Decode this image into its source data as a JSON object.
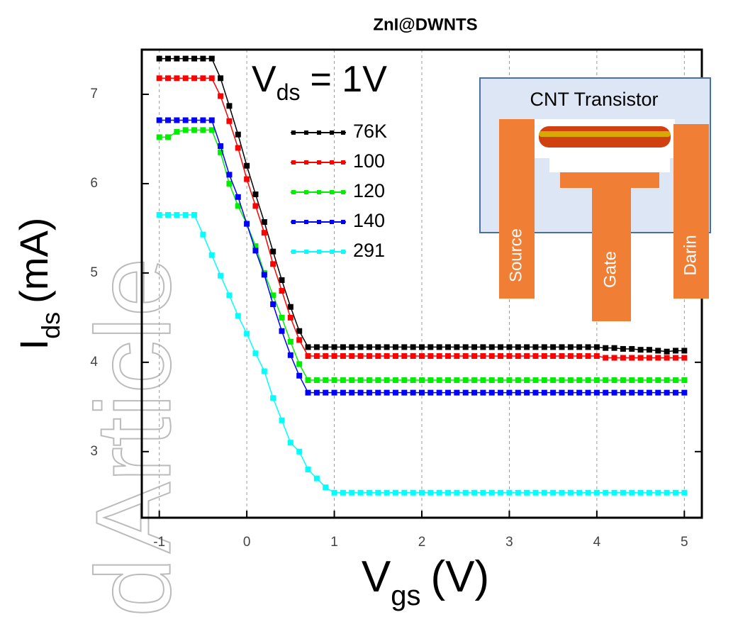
{
  "watermark": [
    "Article",
    "d"
  ],
  "chart_data": {
    "type": "line",
    "title": "ZnI@DWNTS",
    "x_label": {
      "symbol": "V",
      "subscript": "gs",
      "unit": "(V)"
    },
    "y_label": {
      "symbol": "I",
      "subscript": "ds",
      "unit": "(mA)"
    },
    "annotation": {
      "symbol": "V",
      "subscript": "ds",
      "text": "= 1V"
    },
    "inset": {
      "title": "CNT Transistor",
      "labels": [
        "Source",
        "Gate",
        "Darin"
      ]
    },
    "xlim": [
      -1.2,
      5.2
    ],
    "ylim": [
      2.26,
      7.5
    ],
    "xticks": [
      -1,
      0,
      1,
      2,
      3,
      4,
      5
    ],
    "yticks": [
      3,
      4,
      5,
      6,
      7
    ],
    "grid": true,
    "x": [
      -1,
      -0.9,
      -0.8,
      -0.7,
      -0.6,
      -0.5,
      -0.4,
      -0.3,
      -0.2,
      -0.1,
      0,
      0.1,
      0.2,
      0.3,
      0.4,
      0.5,
      0.6,
      0.7,
      0.8,
      0.9,
      1,
      1.1,
      1.2,
      1.3,
      1.4,
      1.5,
      1.6,
      1.7,
      1.8,
      1.9,
      2,
      2.1,
      2.2,
      2.3,
      2.4,
      2.5,
      2.6,
      2.7,
      2.8,
      2.9,
      3,
      3.1,
      3.2,
      3.3,
      3.4,
      3.5,
      3.6,
      3.7,
      3.8,
      3.9,
      4,
      4.1,
      4.2,
      4.3,
      4.4,
      4.5,
      4.6,
      4.7,
      4.8,
      4.9,
      5
    ],
    "series": [
      {
        "name": "76K",
        "color": "#000000",
        "values": [
          7.4,
          7.4,
          7.4,
          7.4,
          7.4,
          7.4,
          7.4,
          7.18,
          6.87,
          6.55,
          6.2,
          5.88,
          5.57,
          5.24,
          4.92,
          4.62,
          4.35,
          4.17,
          4.17,
          4.17,
          4.17,
          4.17,
          4.17,
          4.17,
          4.17,
          4.17,
          4.17,
          4.17,
          4.17,
          4.17,
          4.17,
          4.17,
          4.17,
          4.17,
          4.17,
          4.17,
          4.17,
          4.17,
          4.17,
          4.17,
          4.17,
          4.17,
          4.17,
          4.17,
          4.17,
          4.17,
          4.17,
          4.17,
          4.17,
          4.17,
          4.17,
          4.16,
          4.16,
          4.15,
          4.15,
          4.14,
          4.14,
          4.13,
          4.12,
          4.13,
          4.13
        ]
      },
      {
        "name": "100",
        "color": "#ff0000",
        "values": [
          7.18,
          7.18,
          7.18,
          7.18,
          7.18,
          7.18,
          7.18,
          6.98,
          6.7,
          6.4,
          6.05,
          5.75,
          5.45,
          5.1,
          4.8,
          4.5,
          4.25,
          4.07,
          4.07,
          4.07,
          4.07,
          4.07,
          4.07,
          4.07,
          4.07,
          4.07,
          4.07,
          4.07,
          4.07,
          4.07,
          4.07,
          4.07,
          4.07,
          4.07,
          4.07,
          4.07,
          4.07,
          4.07,
          4.07,
          4.07,
          4.07,
          4.07,
          4.07,
          4.07,
          4.07,
          4.07,
          4.07,
          4.07,
          4.07,
          4.07,
          4.07,
          4.05,
          4.05,
          4.05,
          4.05,
          4.05,
          4.05,
          4.05,
          4.05,
          4.05,
          4.05
        ]
      },
      {
        "name": "120",
        "color": "#00ee00",
        "values": [
          6.52,
          6.52,
          6.58,
          6.6,
          6.6,
          6.6,
          6.6,
          6.35,
          6.0,
          5.75,
          5.55,
          5.3,
          5.0,
          4.75,
          4.5,
          4.23,
          3.98,
          3.8,
          3.8,
          3.8,
          3.8,
          3.8,
          3.8,
          3.8,
          3.8,
          3.8,
          3.8,
          3.8,
          3.8,
          3.8,
          3.8,
          3.8,
          3.8,
          3.8,
          3.8,
          3.8,
          3.8,
          3.8,
          3.8,
          3.8,
          3.8,
          3.8,
          3.8,
          3.8,
          3.8,
          3.8,
          3.8,
          3.8,
          3.8,
          3.8,
          3.8,
          3.8,
          3.8,
          3.8,
          3.8,
          3.8,
          3.8,
          3.8,
          3.8,
          3.8,
          3.8
        ]
      },
      {
        "name": "140",
        "color": "#0000ff",
        "values": [
          6.71,
          6.71,
          6.71,
          6.71,
          6.71,
          6.71,
          6.71,
          6.42,
          6.1,
          5.85,
          5.55,
          5.25,
          4.98,
          4.65,
          4.35,
          4.08,
          3.85,
          3.66,
          3.66,
          3.66,
          3.66,
          3.66,
          3.66,
          3.66,
          3.66,
          3.66,
          3.66,
          3.66,
          3.66,
          3.66,
          3.66,
          3.66,
          3.66,
          3.66,
          3.66,
          3.66,
          3.66,
          3.66,
          3.66,
          3.66,
          3.66,
          3.66,
          3.66,
          3.66,
          3.66,
          3.66,
          3.66,
          3.66,
          3.66,
          3.66,
          3.66,
          3.66,
          3.66,
          3.66,
          3.66,
          3.66,
          3.66,
          3.66,
          3.66,
          3.66,
          3.66
        ]
      },
      {
        "name": "291",
        "color": "#00ffff",
        "values": [
          5.65,
          5.65,
          5.65,
          5.65,
          5.65,
          5.43,
          5.2,
          4.97,
          4.75,
          4.52,
          4.32,
          4.1,
          3.9,
          3.6,
          3.35,
          3.1,
          3.0,
          2.8,
          2.7,
          2.6,
          2.54,
          2.54,
          2.54,
          2.54,
          2.54,
          2.54,
          2.54,
          2.54,
          2.54,
          2.54,
          2.54,
          2.54,
          2.54,
          2.54,
          2.54,
          2.54,
          2.54,
          2.54,
          2.54,
          2.54,
          2.54,
          2.54,
          2.54,
          2.54,
          2.54,
          2.54,
          2.54,
          2.54,
          2.54,
          2.54,
          2.54,
          2.54,
          2.54,
          2.54,
          2.54,
          2.54,
          2.54,
          2.54,
          2.54,
          2.54,
          2.54
        ]
      }
    ]
  }
}
